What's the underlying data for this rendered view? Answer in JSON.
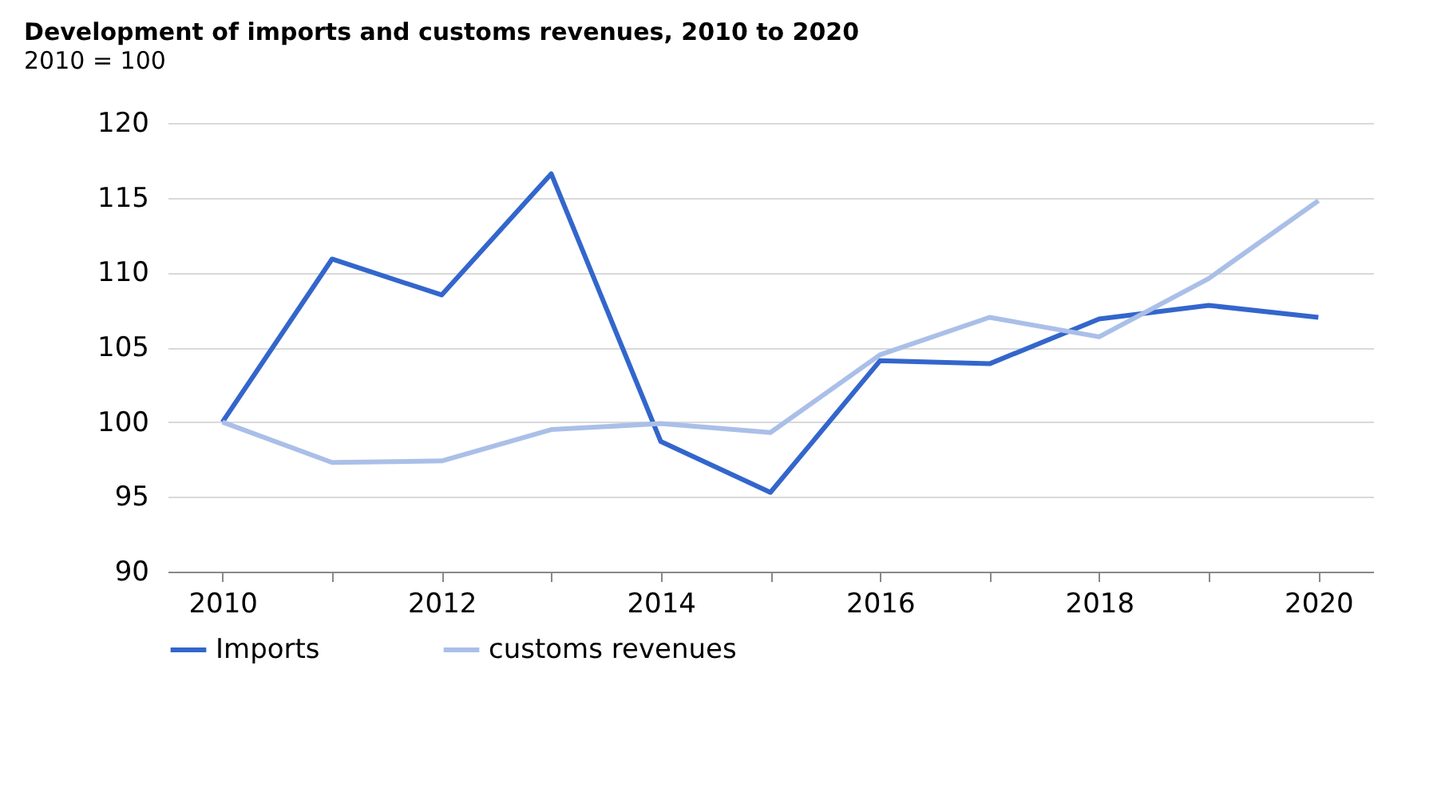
{
  "chart_data": {
    "type": "line",
    "title": "Development of imports and customs revenues, 2010 to 2020",
    "subtitle": "2010 = 100",
    "x": [
      2010,
      2011,
      2012,
      2013,
      2014,
      2015,
      2016,
      2017,
      2018,
      2019,
      2020
    ],
    "series": [
      {
        "name": "Imports",
        "color": "#3366cc",
        "values": [
          100,
          110.9,
          108.5,
          116.6,
          98.7,
          95.3,
          104.1,
          103.9,
          106.9,
          107.8,
          107.0
        ]
      },
      {
        "name": "customs revenues",
        "color": "#aabfe8",
        "values": [
          100,
          97.3,
          97.4,
          99.5,
          99.9,
          99.3,
          104.5,
          107.0,
          105.7,
          109.6,
          114.8
        ]
      }
    ],
    "xlim": [
      2009.5,
      2020.5
    ],
    "xticks": [
      2010,
      {
        "value": 2011,
        "label": null
      },
      2012,
      {
        "value": 2013,
        "label": null
      },
      2014,
      {
        "value": 2015,
        "label": null
      },
      2016,
      {
        "value": 2017,
        "label": null
      },
      2018,
      {
        "value": 2019,
        "label": null
      },
      2020
    ],
    "ylim": [
      90,
      120
    ],
    "yticks": [
      90,
      95,
      100,
      105,
      110,
      115,
      120
    ],
    "grid": "y",
    "legend": "bottom",
    "marker": "none",
    "line_style": "solid"
  }
}
